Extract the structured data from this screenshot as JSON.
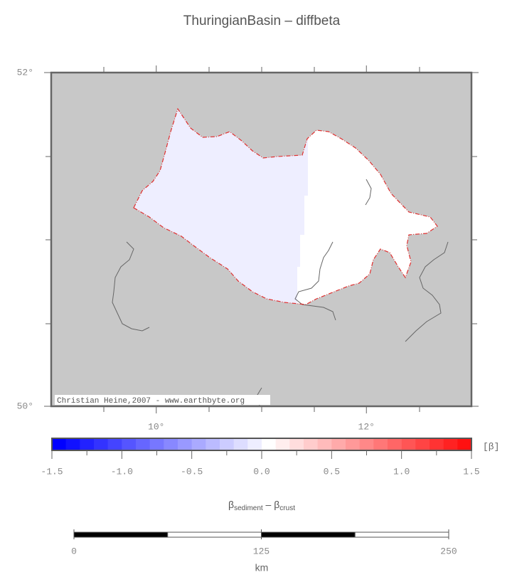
{
  "title": "ThuringianBasin – diffbeta",
  "map": {
    "lonlim": [
      9,
      13
    ],
    "latlim": [
      50,
      52
    ],
    "lonticks": [
      {
        "value": 10,
        "label": "10°"
      },
      {
        "value": 12,
        "label": "12°"
      }
    ],
    "latticks": [
      {
        "value": 50,
        "label": "50°"
      },
      {
        "value": 52,
        "label": "52°"
      }
    ],
    "background": "#c8c8c8",
    "basin_values": [
      -0.05,
      0.05
    ],
    "credit": "Christian Heine,2007 - www.earthbyte.org"
  },
  "colorbar": {
    "lim": [
      -1.5,
      1.5
    ],
    "step": 0.1,
    "colors": [
      "#0000ff",
      "#ffffff",
      "#ff0000"
    ],
    "unit": "[β]",
    "ticks": [
      {
        "value": -1.5,
        "label": "-1.5"
      },
      {
        "value": -1.0,
        "label": "-1.0"
      },
      {
        "value": -0.5,
        "label": "-0.5"
      },
      {
        "value": 0,
        "label": "0.0"
      },
      {
        "value": 0.5,
        "label": "0.5"
      },
      {
        "value": 1.0,
        "label": "1.0"
      },
      {
        "value": 1.5,
        "label": "1.5"
      }
    ],
    "label": {
      "main1": "β",
      "sub1": "sediment",
      "main2": " – β",
      "sub2": "crust"
    }
  },
  "scalebar": {
    "lim": [
      0,
      250
    ],
    "ticks": [
      0,
      125,
      250
    ],
    "unit": "km"
  }
}
